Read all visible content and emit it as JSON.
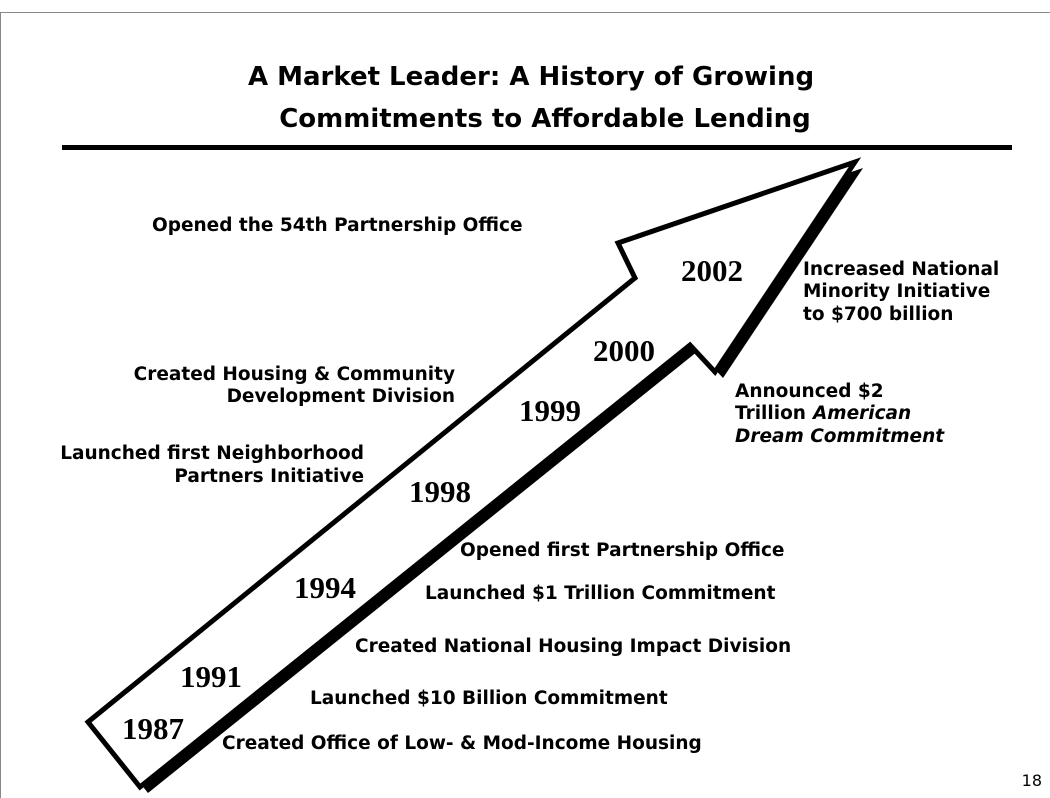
{
  "title": [
    "A Market Leader: A History of Growing",
    "Commitments to Affordable Lending"
  ],
  "years": [
    "1987",
    "1991",
    "1994",
    "1998",
    "1999",
    "2000",
    "2002"
  ],
  "events": {
    "left": [
      [
        "Opened the 54th Partnership Office"
      ],
      [
        "Created Housing & Community",
        "Development Division"
      ],
      [
        "Launched first Neighborhood",
        "Partners Initiative"
      ]
    ],
    "right": [
      [
        "Increased National",
        "Minority Initiative",
        "to $700 billion"
      ],
      [
        "Announced $2",
        "Trillion",
        "American",
        "Dream Commitment"
      ]
    ],
    "bottom": [
      "Opened first Partnership Office",
      "Launched $1 Trillion Commitment",
      "Created National Housing Impact Division",
      "Launched $10 Billion Commitment",
      "Created Office of Low- & Mod-Income Housing"
    ]
  },
  "page_number": "18"
}
